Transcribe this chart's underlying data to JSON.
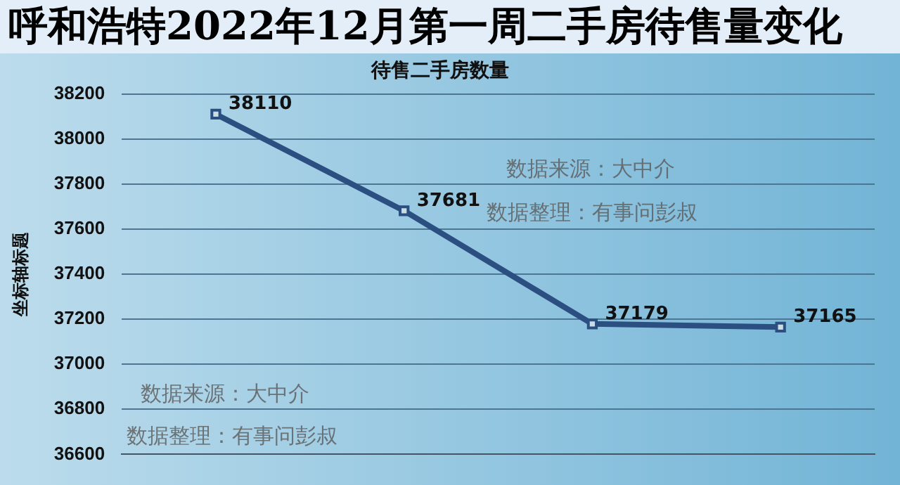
{
  "chart_data": {
    "type": "line",
    "title": "呼和浩特2022年12月第一周二手房待售量变化",
    "subtitle": "待售二手房数量",
    "ylabel": "坐标轴标题",
    "categories": [
      null,
      null,
      null,
      null
    ],
    "series": [
      {
        "color": "#2b4f81",
        "values": [
          38110,
          37681,
          37179,
          37165
        ]
      }
    ],
    "ylim": [
      36600,
      38200
    ],
    "yticks": [
      36600,
      36800,
      37000,
      37200,
      37400,
      37600,
      37800,
      38000,
      38200
    ],
    "grid": "y",
    "legend": false,
    "marker": "square",
    "line_style": "solid",
    "data_labels": true,
    "tick_labels": "y",
    "annotations": [
      "数据来源：大中介",
      "数据整理：有事问彭叔",
      "数据来源：大中介",
      "数据整理：有事问彭叔"
    ]
  }
}
